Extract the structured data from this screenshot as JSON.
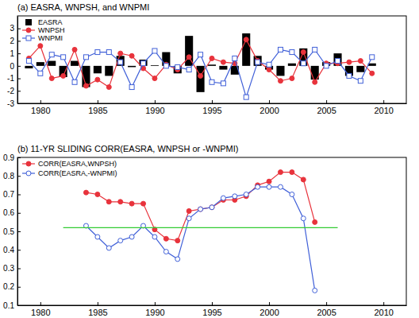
{
  "chart_data": [
    {
      "type": "bar",
      "title": "(a) EASRA, WNPSH, and WNPMI",
      "x": [
        1979,
        1980,
        1981,
        1982,
        1983,
        1984,
        1985,
        1986,
        1987,
        1988,
        1989,
        1990,
        1991,
        1992,
        1993,
        1994,
        1995,
        1996,
        1997,
        1998,
        1999,
        2000,
        2001,
        2002,
        2003,
        2004,
        2005,
        2006,
        2007,
        2008,
        2009
      ],
      "series": [
        {
          "name": "EASRA",
          "type": "bar",
          "color": "#000000",
          "values": [
            -0.2,
            0.3,
            0.4,
            -0.9,
            0.4,
            -1.7,
            -0.6,
            -0.8,
            0.8,
            -0.1,
            0.5,
            0.05,
            1.1,
            -0.6,
            2.4,
            -2.1,
            0.1,
            -0.3,
            -0.7,
            2.6,
            0.8,
            -0.3,
            -0.8,
            0.2,
            1.4,
            -1.1,
            0.3,
            1.0,
            -0.8,
            -0.5,
            0.2
          ]
        },
        {
          "name": "WNPSH",
          "type": "line",
          "marker": "circle",
          "color": "#e8333c",
          "values": [
            0.6,
            1.6,
            -1.0,
            -0.8,
            1.3,
            -1.6,
            -1.1,
            -1.7,
            1.0,
            0.8,
            -0.2,
            -1.0,
            0.1,
            -0.3,
            0.7,
            -0.8,
            0.6,
            0.3,
            0.2,
            2.1,
            0.4,
            -0.3,
            -1.2,
            -1.0,
            1.1,
            -1.3,
            0.2,
            0.2,
            0.3,
            0.4,
            -0.6
          ]
        },
        {
          "name": "WNPMI",
          "type": "line",
          "marker": "open_square",
          "color": "#4060d8",
          "values": [
            0.4,
            -0.6,
            0.9,
            0.7,
            -1.3,
            0.7,
            1.1,
            1.1,
            0.3,
            -1.7,
            0.2,
            1.2,
            0.0,
            -0.1,
            -0.3,
            0.9,
            -1.3,
            -1.4,
            0.6,
            -2.5,
            0.3,
            0.1,
            1.3,
            1.1,
            0.2,
            1.3,
            0.0,
            0.4,
            -0.8,
            -1.2,
            0.7
          ]
        }
      ],
      "xlim": [
        1978,
        2012
      ],
      "xticks": [
        1980,
        1985,
        1990,
        1995,
        2000,
        2005,
        2010
      ],
      "ylim": [
        -3,
        4
      ],
      "yticks": [
        -3,
        -2,
        -1,
        0,
        1,
        2,
        3
      ],
      "grid": false,
      "legend": "upper left"
    },
    {
      "type": "line",
      "title": "(b) 11-YR SLIDING CORR(EASRA, WNPSH or -WNPMI)",
      "series": [
        {
          "name": "CORR(EASRA,WNPSH)",
          "marker": "circle",
          "color": "#e8333c",
          "x": [
            1984,
            1985,
            1986,
            1987,
            1988,
            1989,
            1990,
            1991,
            1992,
            1993,
            1994,
            1995,
            1996,
            1997,
            1998,
            1999,
            2000,
            2001,
            2002,
            2003,
            2004
          ],
          "values": [
            0.71,
            0.7,
            0.66,
            0.66,
            0.65,
            0.65,
            0.51,
            0.46,
            0.45,
            0.61,
            0.62,
            0.63,
            0.67,
            0.67,
            0.69,
            0.75,
            0.77,
            0.82,
            0.82,
            0.78,
            0.55
          ]
        },
        {
          "name": "CORR(EASRA,-WNPMI)",
          "marker": "open_circle",
          "color": "#4060d8",
          "x": [
            1984,
            1985,
            1986,
            1987,
            1988,
            1989,
            1990,
            1991,
            1992,
            1993,
            1994,
            1995,
            1996,
            1997,
            1998,
            1999,
            2000,
            2001,
            2002,
            2003,
            2004
          ],
          "values": [
            0.53,
            0.47,
            0.41,
            0.45,
            0.47,
            0.53,
            0.47,
            0.39,
            0.35,
            0.57,
            0.62,
            0.63,
            0.68,
            0.69,
            0.7,
            0.74,
            0.74,
            0.74,
            0.7,
            0.57,
            0.18
          ]
        },
        {
          "color": "#33cc33",
          "x": [
            1982,
            2006
          ],
          "values": [
            0.52,
            0.52
          ]
        }
      ],
      "xlim": [
        1978,
        2012
      ],
      "xticks": [
        1980,
        1985,
        1990,
        1995,
        2000,
        2005,
        2010
      ],
      "ylim": [
        0.1,
        0.9
      ],
      "yticks": [
        0.1,
        0.2,
        0.3,
        0.4,
        0.5,
        0.6,
        0.7,
        0.8,
        0.9
      ],
      "grid": false,
      "legend": "upper left"
    }
  ]
}
